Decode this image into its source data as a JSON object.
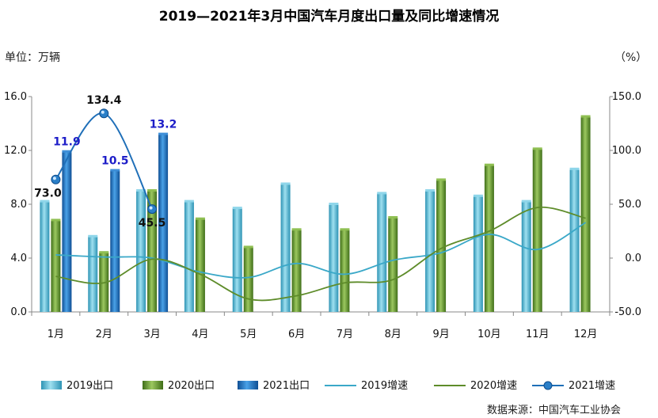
{
  "title": "2019—2021年3月中国汽车月度出口量及同比增速情况",
  "unit_left": "单位：万辆",
  "unit_right": "（%）",
  "source": "数据来源：中国汽车工业协会",
  "colors": {
    "s2019_bar": "#4bb3cf",
    "s2020_bar": "#6a9a2e",
    "s2021_bar": "#1f6fb8",
    "s2019_line": "#3aa8c8",
    "s2020_line": "#5e8c2a",
    "s2021_line": "#1f6fb8",
    "axis": "#888888"
  },
  "chart_data": {
    "type": "bar",
    "title": "2019—2021年3月中国汽车月度出口量及同比增速情况",
    "categories": [
      "1月",
      "2月",
      "3月",
      "4月",
      "5月",
      "6月",
      "7月",
      "8月",
      "9月",
      "10月",
      "11月",
      "12月"
    ],
    "ylabel": "单位：万辆",
    "y2label": "（%）",
    "ylim": [
      0,
      16
    ],
    "yticks": [
      "0.0",
      "4.0",
      "8.0",
      "12.0",
      "16.0"
    ],
    "y2lim": [
      -50,
      150
    ],
    "y2ticks": [
      "-50.0",
      "0.0",
      "50.0",
      "100.0",
      "150.0"
    ],
    "grid": false,
    "legend_position": "bottom",
    "bar_series": [
      {
        "name": "2019出口",
        "values": [
          8.2,
          5.6,
          9.0,
          8.2,
          7.7,
          9.5,
          8.0,
          8.8,
          9.0,
          8.6,
          8.2,
          10.6
        ]
      },
      {
        "name": "2020出口",
        "values": [
          6.8,
          4.4,
          9.0,
          6.9,
          4.8,
          6.1,
          6.1,
          7.0,
          9.8,
          10.9,
          12.1,
          14.5
        ]
      },
      {
        "name": "2021出口",
        "values": [
          11.9,
          10.5,
          13.2
        ],
        "labels": [
          "11.9",
          "10.5",
          "13.2"
        ]
      }
    ],
    "line_series": [
      {
        "name": "2019增速",
        "values": [
          3,
          1,
          0,
          -13,
          -18,
          -5,
          -15,
          -2,
          5,
          22,
          8,
          33
        ]
      },
      {
        "name": "2020增速",
        "values": [
          -17,
          -23,
          -1,
          -15,
          -38,
          -35,
          -23,
          -20,
          9,
          25,
          47,
          37
        ]
      },
      {
        "name": "2021增速",
        "values": [
          73.0,
          134.4,
          45.5
        ],
        "labels": [
          "73.0",
          "134.4",
          "45.5"
        ]
      }
    ]
  }
}
